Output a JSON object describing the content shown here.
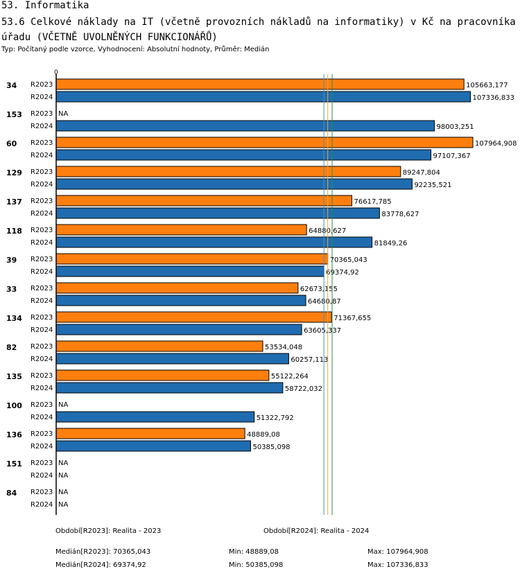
{
  "header": {
    "section": "53. Informatika",
    "title": "53.6 Celkové náklady na IT (včetně provozních nákladů na informatiky) v Kč na pracovníka úřadu (VČETNĚ UVOLNĚNÝCH FUNKCIONÁŘŮ)",
    "subtitle": "Typ: Počítaný podle vzorce, Vyhodnocení: Absolutní hodnoty, Průměr: Medián"
  },
  "colors": {
    "r2023": "#ff7f0e",
    "r2024": "#1f6cb0",
    "median2023": "#f5a623",
    "median2024": "#4a90c8",
    "ref": "#2e8b57"
  },
  "chart_data": {
    "type": "bar",
    "orientation": "horizontal",
    "axis_zero_label": "0",
    "xlim": [
      0,
      107964.908
    ],
    "series": [
      {
        "name": "R2023",
        "color": "#ff7f0e"
      },
      {
        "name": "R2024",
        "color": "#1f6cb0"
      }
    ],
    "groups": [
      {
        "id": "34",
        "values": [
          105663.177,
          107336.833
        ],
        "labels": [
          "105663,177",
          "107336,833"
        ]
      },
      {
        "id": "153",
        "values": [
          null,
          98003.251
        ],
        "labels": [
          "NA",
          "98003,251"
        ]
      },
      {
        "id": "60",
        "values": [
          107964.908,
          97107.367
        ],
        "labels": [
          "107964,908",
          "97107,367"
        ]
      },
      {
        "id": "129",
        "values": [
          89247.804,
          92235.521
        ],
        "labels": [
          "89247,804",
          "92235,521"
        ]
      },
      {
        "id": "137",
        "values": [
          76617.785,
          83778.627
        ],
        "labels": [
          "76617,785",
          "83778,627"
        ]
      },
      {
        "id": "118",
        "values": [
          64880.627,
          81849.26
        ],
        "labels": [
          "64880,627",
          "81849,26"
        ]
      },
      {
        "id": "39",
        "values": [
          70365.043,
          69374.92
        ],
        "labels": [
          "70365,043",
          "69374,92"
        ]
      },
      {
        "id": "33",
        "values": [
          62673.155,
          64680.87
        ],
        "labels": [
          "62673,155",
          "64680,87"
        ]
      },
      {
        "id": "134",
        "values": [
          71367.655,
          63605.337
        ],
        "labels": [
          "71367,655",
          "63605,337"
        ]
      },
      {
        "id": "82",
        "values": [
          53534.048,
          60257.113
        ],
        "labels": [
          "53534,048",
          "60257,113"
        ]
      },
      {
        "id": "135",
        "values": [
          55122.264,
          58722.032
        ],
        "labels": [
          "55122,264",
          "58722,032"
        ]
      },
      {
        "id": "100",
        "values": [
          null,
          51322.792
        ],
        "labels": [
          "NA",
          "51322,792"
        ]
      },
      {
        "id": "136",
        "values": [
          48889.08,
          50385.098
        ],
        "labels": [
          "48889,08",
          "50385,098"
        ]
      },
      {
        "id": "151",
        "values": [
          null,
          null
        ],
        "labels": [
          "NA",
          "NA"
        ]
      },
      {
        "id": "84",
        "values": [
          null,
          null
        ],
        "labels": [
          "NA",
          "NA"
        ]
      }
    ],
    "reference_lines": [
      {
        "value": 69374.92,
        "color": "#4a90c8"
      },
      {
        "value": 70365.043,
        "color": "#f5a623"
      },
      {
        "value": 71500,
        "color": "#2e8b57"
      }
    ]
  },
  "footer": {
    "period_2023": "Období[R2023]: Realita - 2023",
    "period_2024": "Období[R2024]: Realita - 2024",
    "median_2023": "Medián[R2023]: 70365,043",
    "min_2023": "Min: 48889,08",
    "max_2023": "Max: 107964,908",
    "median_2024": "Medián[R2024]: 69374,92",
    "min_2024": "Min: 50385,098",
    "max_2024": "Max: 107336,833"
  }
}
